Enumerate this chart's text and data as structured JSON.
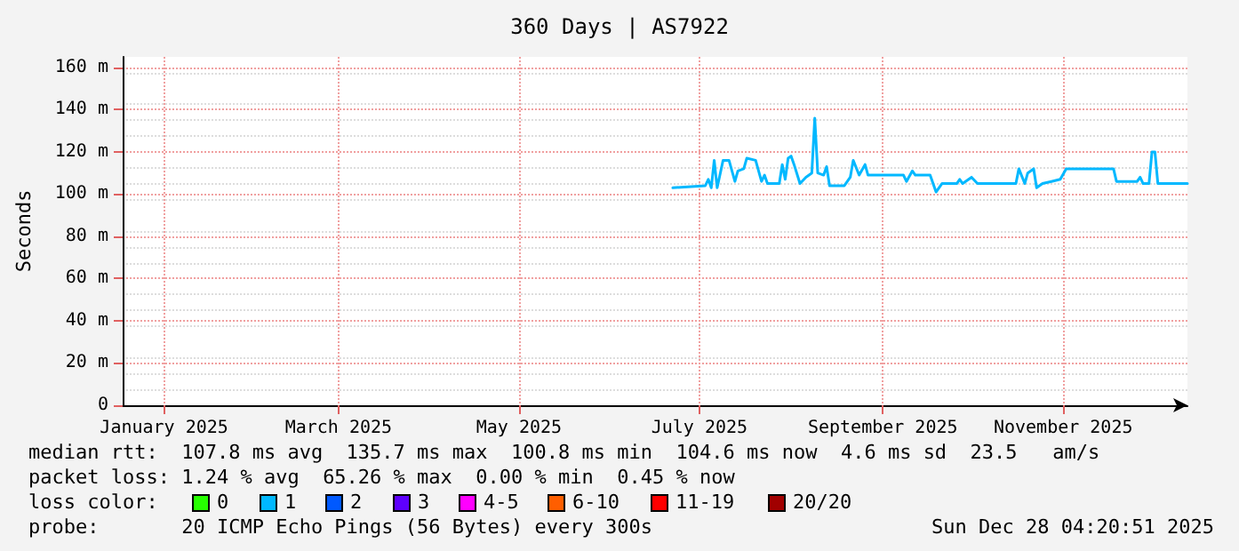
{
  "chart_data": {
    "type": "line",
    "title": "360 Days | AS7922",
    "ylabel": "Seconds",
    "x": [
      "2025-07-07",
      "2025-07-18",
      "2025-07-19",
      "2025-07-20",
      "2025-07-21",
      "2025-07-22",
      "2025-07-24",
      "2025-07-26",
      "2025-07-28",
      "2025-07-29",
      "2025-07-31",
      "2025-08-01",
      "2025-08-04",
      "2025-08-06",
      "2025-08-07",
      "2025-08-08",
      "2025-08-12",
      "2025-08-13",
      "2025-08-14",
      "2025-08-15",
      "2025-08-16",
      "2025-08-17",
      "2025-08-19",
      "2025-08-21",
      "2025-08-23",
      "2025-08-24",
      "2025-08-25",
      "2025-08-27",
      "2025-08-28",
      "2025-08-29",
      "2025-09-03",
      "2025-09-05",
      "2025-09-06",
      "2025-09-08",
      "2025-09-10",
      "2025-09-11",
      "2025-09-13",
      "2025-09-23",
      "2025-09-24",
      "2025-09-26",
      "2025-09-27",
      "2025-10-02",
      "2025-10-03",
      "2025-10-04",
      "2025-10-06",
      "2025-10-11",
      "2025-10-12",
      "2025-10-13",
      "2025-10-16",
      "2025-10-18",
      "2025-10-31",
      "2025-11-01",
      "2025-11-03",
      "2025-11-04",
      "2025-11-06",
      "2025-11-07",
      "2025-11-09",
      "2025-11-12",
      "2025-11-15",
      "2025-11-17",
      "2025-12-03",
      "2025-12-04",
      "2025-12-11",
      "2025-12-12",
      "2025-12-13",
      "2025-12-15",
      "2025-12-16",
      "2025-12-17",
      "2025-12-18",
      "2025-12-28"
    ],
    "series": [
      {
        "color": "#00b8ff",
        "values": [
          103,
          104,
          107,
          103,
          116,
          103,
          116,
          116,
          106,
          111,
          112,
          117,
          116,
          106,
          109,
          105,
          105,
          114,
          107,
          117,
          118,
          114,
          105,
          108,
          110,
          136,
          110,
          109,
          113,
          104,
          104,
          108,
          116,
          109,
          114,
          109,
          109,
          109,
          106,
          111,
          109,
          109,
          105,
          101,
          105,
          105,
          107,
          105,
          108,
          105,
          105,
          112,
          105,
          110,
          112,
          103,
          105,
          106,
          107,
          112,
          112,
          106,
          106,
          108,
          105,
          105,
          120,
          120,
          105,
          105
        ]
      }
    ],
    "xlim": [
      "2025-01-02",
      "2025-12-28"
    ],
    "xticks": [
      {
        "value": "2025-01-16",
        "label": "January 2025"
      },
      {
        "value": "2025-03-16",
        "label": "March 2025"
      },
      {
        "value": "2025-05-16",
        "label": "May 2025"
      },
      {
        "value": "2025-07-16",
        "label": "July 2025"
      },
      {
        "value": "2025-09-16",
        "label": "September 2025"
      },
      {
        "value": "2025-11-16",
        "label": "November 2025"
      }
    ],
    "ylim": [
      0,
      165
    ],
    "yticks": [
      0,
      {
        "value": 20,
        "label": "20 m"
      },
      {
        "value": 40,
        "label": "40 m"
      },
      {
        "value": 60,
        "label": "60 m"
      },
      {
        "value": 80,
        "label": "80 m"
      },
      {
        "value": 100,
        "label": "100 m"
      },
      {
        "value": 120,
        "label": "120 m"
      },
      {
        "value": 140,
        "label": "140 m"
      },
      {
        "value": 160,
        "label": "160 m"
      }
    ],
    "grid": true,
    "marker": "none",
    "line_style": "solid",
    "annotations": [
      "median rtt:  107.8 ms avg  135.7 ms max  100.8 ms min  104.6 ms now  4.6 ms sd  23.5   am/s",
      "packet loss: 1.24 % avg  65.26 % max  0.00 % min  0.45 % now",
      "loss color:",
      "0",
      "1",
      "2",
      "3",
      "4-5",
      "6-10",
      "11-19",
      "20/20",
      "probe:       20 ICMP Echo Pings (56 Bytes) every 300s",
      "Sun Dec 28 04:20:51 2025"
    ]
  }
}
